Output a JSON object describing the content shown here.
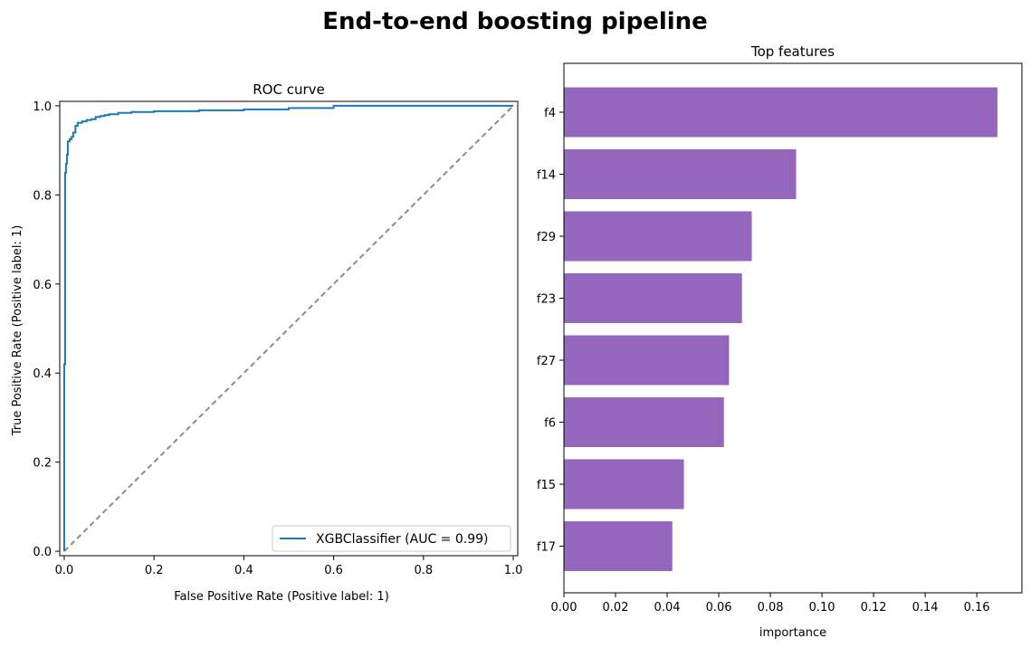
{
  "figure": {
    "suptitle": "End-to-end boosting pipeline"
  },
  "colors": {
    "roc": "#1f77b4",
    "chance": "#8c8c8c",
    "bar": "#9467bd",
    "axis": "#000000",
    "background": "#ffffff"
  },
  "chart_data": [
    {
      "type": "line",
      "title": "ROC curve",
      "xlabel": "False Positive Rate (Positive label: 1)",
      "ylabel": "True Positive Rate (Positive label: 1)",
      "xlim": [
        -0.01,
        1.01
      ],
      "ylim": [
        -0.01,
        1.01
      ],
      "xticks": [
        0.0,
        0.2,
        0.4,
        0.6,
        0.8,
        1.0
      ],
      "xtick_labels": [
        "0.0",
        "0.2",
        "0.4",
        "0.6",
        "0.8",
        "1.0"
      ],
      "yticks": [
        0.0,
        0.2,
        0.4,
        0.6,
        0.8,
        1.0
      ],
      "ytick_labels": [
        "0.0",
        "0.2",
        "0.4",
        "0.6",
        "0.8",
        "1.0"
      ],
      "legend_position": "lower-right",
      "grid": false,
      "series": [
        {
          "name": "XGBClassifier (AUC = 0.99)",
          "style": "solid",
          "x": [
            0.0,
            0.0,
            0.002,
            0.002,
            0.004,
            0.004,
            0.006,
            0.006,
            0.008,
            0.008,
            0.012,
            0.012,
            0.016,
            0.016,
            0.02,
            0.02,
            0.025,
            0.025,
            0.03,
            0.03,
            0.04,
            0.04,
            0.05,
            0.05,
            0.06,
            0.06,
            0.07,
            0.07,
            0.08,
            0.08,
            0.09,
            0.09,
            0.1,
            0.1,
            0.12,
            0.12,
            0.15,
            0.15,
            0.2,
            0.2,
            0.3,
            0.3,
            0.4,
            0.4,
            0.5,
            0.5,
            0.6,
            0.6,
            1.0
          ],
          "y": [
            0.0,
            0.42,
            0.42,
            0.85,
            0.85,
            0.87,
            0.87,
            0.89,
            0.89,
            0.92,
            0.92,
            0.925,
            0.925,
            0.93,
            0.93,
            0.94,
            0.94,
            0.955,
            0.955,
            0.962,
            0.962,
            0.965,
            0.965,
            0.968,
            0.968,
            0.97,
            0.97,
            0.975,
            0.975,
            0.977,
            0.977,
            0.979,
            0.979,
            0.981,
            0.981,
            0.984,
            0.984,
            0.986,
            0.986,
            0.988,
            0.988,
            0.99,
            0.99,
            0.992,
            0.992,
            0.995,
            0.995,
            1.0,
            1.0
          ]
        },
        {
          "name": "",
          "style": "dashed",
          "x": [
            0.0,
            1.0
          ],
          "y": [
            0.0,
            1.0
          ]
        }
      ]
    },
    {
      "type": "bar",
      "orientation": "horizontal",
      "title": "Top features",
      "xlabel": "importance",
      "ylabel": "",
      "xlim": [
        0.0,
        0.1775
      ],
      "xticks": [
        0.0,
        0.02,
        0.04,
        0.06,
        0.08,
        0.1,
        0.12,
        0.14,
        0.16
      ],
      "xtick_labels": [
        "0.00",
        "0.02",
        "0.04",
        "0.06",
        "0.08",
        "0.10",
        "0.12",
        "0.14",
        "0.16"
      ],
      "grid": false,
      "categories": [
        "f4",
        "f14",
        "f29",
        "f23",
        "f27",
        "f6",
        "f15",
        "f17"
      ],
      "values": [
        0.168,
        0.09,
        0.0728,
        0.069,
        0.064,
        0.062,
        0.0465,
        0.042
      ]
    }
  ]
}
